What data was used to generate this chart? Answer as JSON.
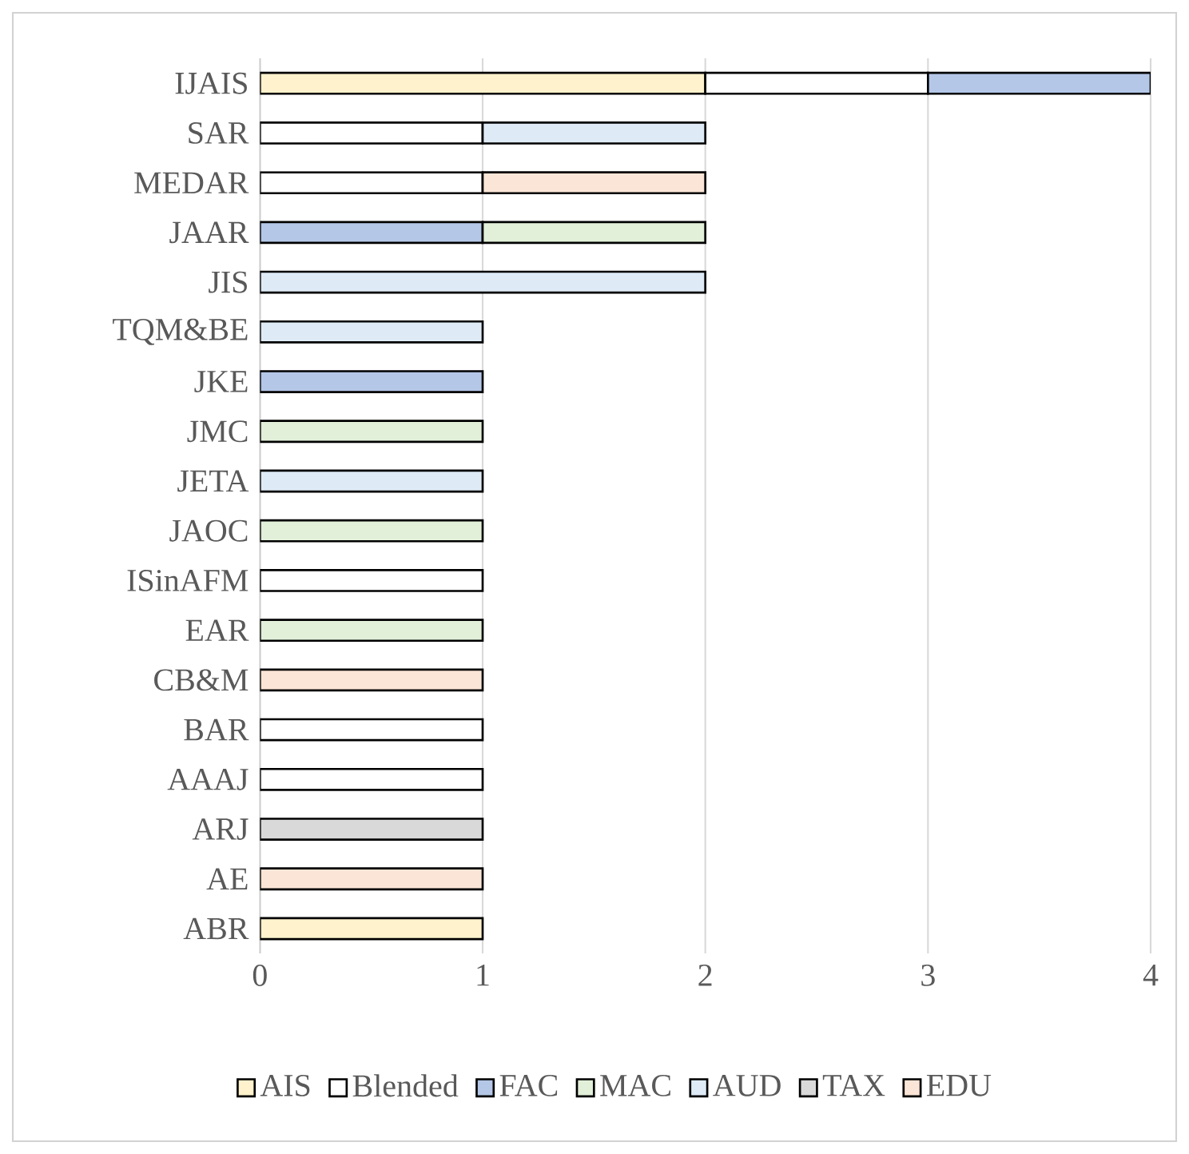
{
  "chart_data": {
    "type": "bar",
    "orientation": "horizontal",
    "stacked": true,
    "categories": [
      "IJAIS",
      "SAR",
      "MEDAR",
      "JAAR",
      "JIS",
      "TQM&BE",
      "JKE",
      "JMC",
      "JETA",
      "JAOC",
      "ISinAFM",
      "EAR",
      "CB&M",
      "BAR",
      "AAAJ",
      "ARJ",
      "AE",
      "ABR"
    ],
    "series": [
      {
        "name": "AIS",
        "color": "#fff2cc",
        "values": [
          2,
          null,
          null,
          null,
          null,
          null,
          null,
          null,
          null,
          null,
          null,
          null,
          null,
          null,
          null,
          null,
          null,
          1
        ]
      },
      {
        "name": "Blended",
        "color": "#ffffff",
        "values": [
          1,
          1,
          1,
          null,
          null,
          null,
          null,
          null,
          null,
          null,
          1,
          null,
          null,
          1,
          1,
          null,
          null,
          null
        ]
      },
      {
        "name": "FAC",
        "color": "#b4c7e7",
        "values": [
          1,
          null,
          null,
          1,
          null,
          null,
          1,
          null,
          null,
          null,
          null,
          null,
          null,
          null,
          null,
          null,
          null,
          null
        ]
      },
      {
        "name": "MAC",
        "color": "#e2f0d9",
        "values": [
          null,
          null,
          null,
          1,
          null,
          null,
          null,
          1,
          null,
          1,
          null,
          1,
          null,
          null,
          null,
          null,
          null,
          null
        ]
      },
      {
        "name": "AUD",
        "color": "#deebf7",
        "values": [
          null,
          1,
          null,
          null,
          2,
          1,
          null,
          null,
          1,
          null,
          null,
          null,
          null,
          null,
          null,
          null,
          null,
          null
        ]
      },
      {
        "name": "TAX",
        "color": "#d9d9d9",
        "values": [
          null,
          null,
          null,
          null,
          null,
          null,
          null,
          null,
          null,
          null,
          null,
          null,
          null,
          null,
          null,
          1,
          null,
          null
        ]
      },
      {
        "name": "EDU",
        "color": "#fbe5d6",
        "values": [
          null,
          null,
          1,
          null,
          null,
          null,
          null,
          null,
          null,
          null,
          null,
          null,
          1,
          null,
          null,
          null,
          1,
          null
        ]
      }
    ],
    "xlim": [
      0,
      4
    ],
    "xticks": [
      0,
      1,
      2,
      3,
      4
    ],
    "grid": "x",
    "legend": "bottom"
  }
}
